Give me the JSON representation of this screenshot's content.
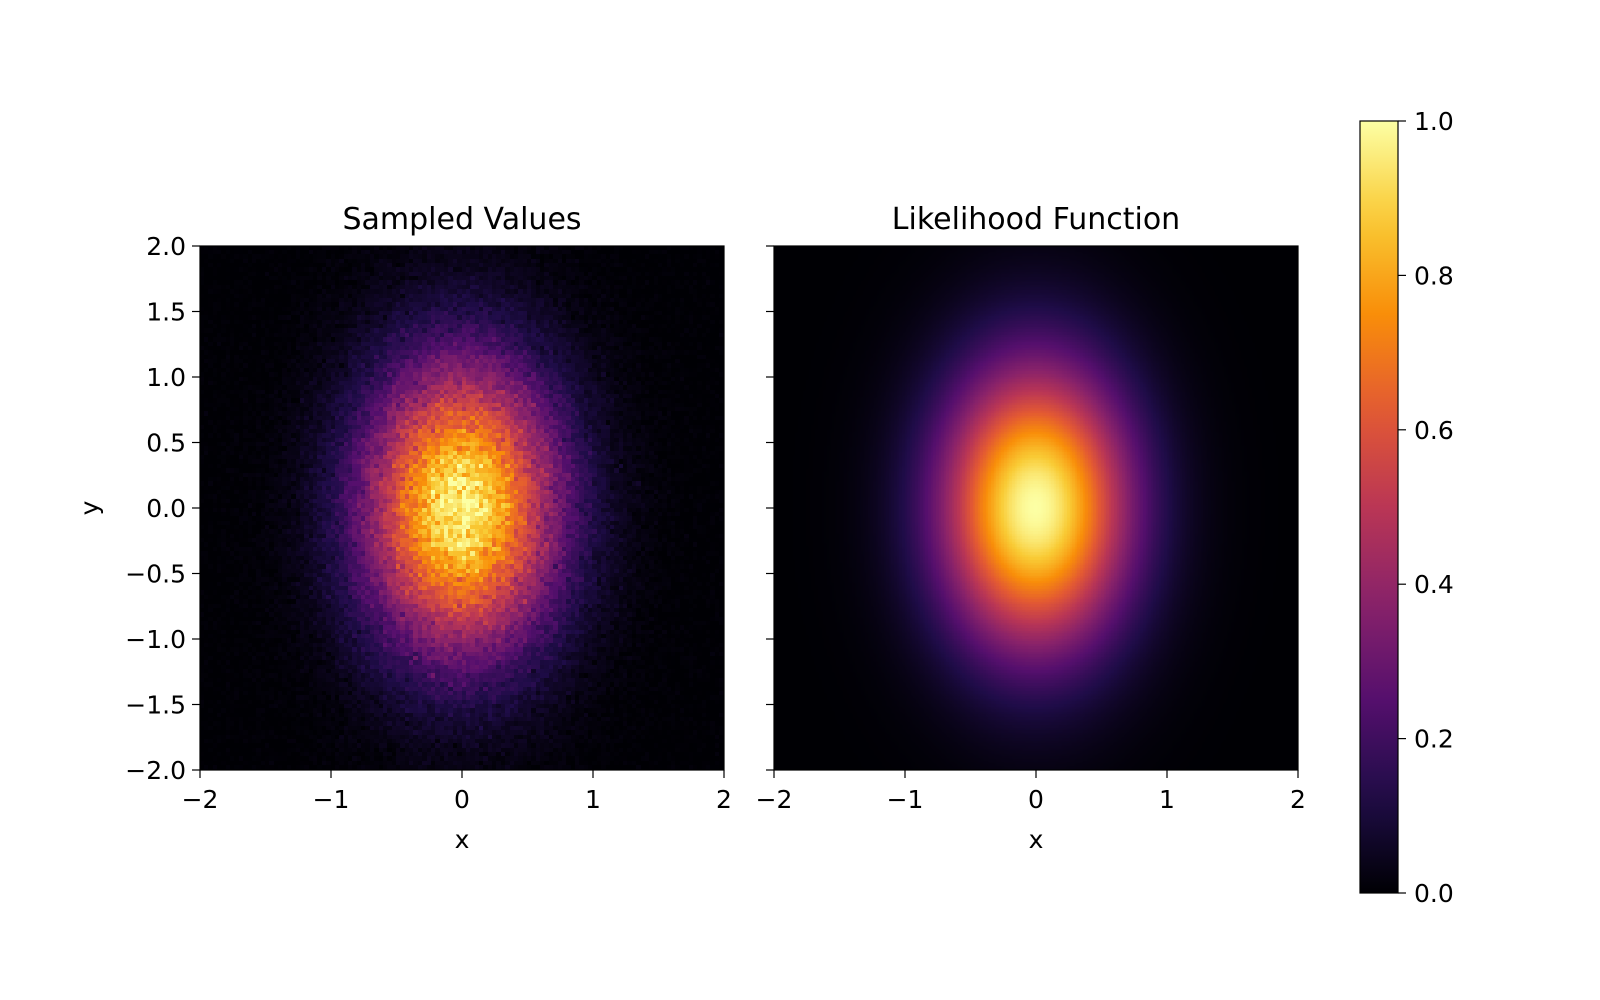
{
  "chart_data": [
    {
      "type": "heatmap",
      "title": "Sampled Values",
      "xlabel": "x",
      "ylabel": "y",
      "xlim": [
        -2,
        2
      ],
      "ylim": [
        -2,
        2
      ],
      "xticks": [
        -2,
        -1,
        0,
        1,
        2
      ],
      "xtick_labels": [
        "−2",
        "−1",
        "0",
        "1",
        "2"
      ],
      "yticks": [
        -2.0,
        -1.5,
        -1.0,
        -0.5,
        0.0,
        0.5,
        1.0,
        1.5,
        2.0
      ],
      "ytick_labels": [
        "−2.0",
        "−1.5",
        "−1.0",
        "−0.5",
        "0.0",
        "0.5",
        "1.0",
        "1.5",
        "2.0"
      ],
      "colormap": "inferno",
      "distribution": {
        "kind": "gaussian-2d-sampled",
        "mean": [
          0,
          0
        ],
        "sigma_x": 0.5,
        "sigma_y": 0.75,
        "peak": 1.0
      },
      "grid_cells": [
        120,
        120
      ],
      "grid": false
    },
    {
      "type": "heatmap",
      "title": "Likelihood Function",
      "xlabel": "x",
      "ylabel": "",
      "xlim": [
        -2,
        2
      ],
      "ylim": [
        -2,
        2
      ],
      "xticks": [
        -2,
        -1,
        0,
        1,
        2
      ],
      "xtick_labels": [
        "−2",
        "−1",
        "0",
        "1",
        "2"
      ],
      "yticks": [
        -2.0,
        -1.5,
        -1.0,
        -0.5,
        0.0,
        0.5,
        1.0,
        1.5,
        2.0
      ],
      "ytick_labels": [],
      "colormap": "inferno",
      "distribution": {
        "kind": "gaussian-2d",
        "mean": [
          0,
          0
        ],
        "sigma_x": 0.5,
        "sigma_y": 0.75,
        "peak": 1.0
      },
      "grid_cells": [
        200,
        200
      ],
      "grid": false
    }
  ],
  "colorbar": {
    "range": [
      0.0,
      1.0
    ],
    "ticks": [
      0.0,
      0.2,
      0.4,
      0.6,
      0.8,
      1.0
    ],
    "tick_labels": [
      "0.0",
      "0.2",
      "0.4",
      "0.6",
      "0.8",
      "1.0"
    ],
    "colormap": "inferno",
    "placement": "right"
  },
  "colors": {
    "inferno_stops": [
      "#000004",
      "#1f0c48",
      "#550f6d",
      "#88226a",
      "#ba3655",
      "#e35933",
      "#f98e09",
      "#f9cb35",
      "#fcffa4"
    ]
  }
}
